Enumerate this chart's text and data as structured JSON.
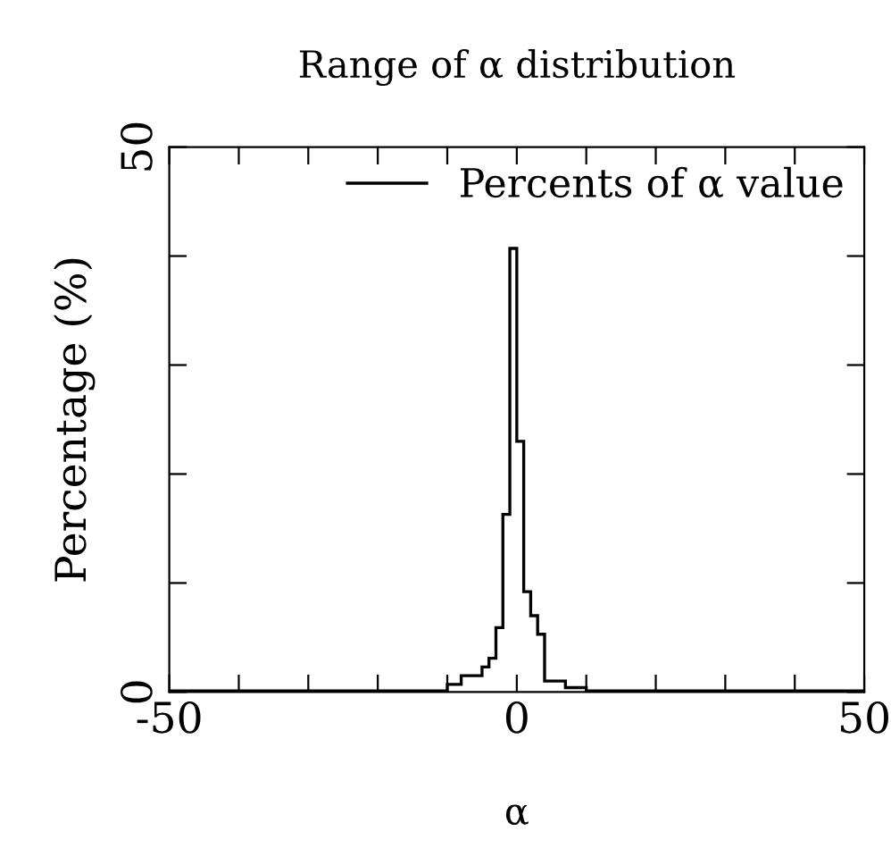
{
  "chart_data": {
    "type": "histogram",
    "title": "Range of α distribution",
    "xlabel": "α",
    "ylabel": "Percentage (%)",
    "bins": [
      -50,
      -10,
      -8,
      -5,
      -4,
      -3,
      -2,
      -1,
      0,
      1,
      2,
      3,
      4,
      7,
      10,
      50
    ],
    "series": [
      {
        "name": "Percents of α value",
        "color": "#000000",
        "values": [
          0.1,
          0.7,
          1.5,
          2.3,
          3.1,
          5.9,
          16.3,
          40.7,
          23.0,
          9.2,
          7.0,
          5.3,
          1.0,
          0.4,
          0.1
        ]
      }
    ],
    "xlim": [
      -50,
      50
    ],
    "ylim": [
      0,
      50
    ],
    "xticks": [
      -50,
      {
        "value": -40,
        "label": null
      },
      {
        "value": -30,
        "label": null
      },
      {
        "value": -20,
        "label": null
      },
      {
        "value": -10,
        "label": null
      },
      0,
      {
        "value": 10,
        "label": null
      },
      {
        "value": 20,
        "label": null
      },
      {
        "value": 30,
        "label": null
      },
      {
        "value": 40,
        "label": null
      },
      50
    ],
    "yticks": [
      0,
      {
        "value": 10,
        "label": null
      },
      {
        "value": 20,
        "label": null
      },
      {
        "value": 30,
        "label": null
      },
      {
        "value": 40,
        "label": null
      },
      50
    ],
    "legend": "top right",
    "grid": false
  }
}
